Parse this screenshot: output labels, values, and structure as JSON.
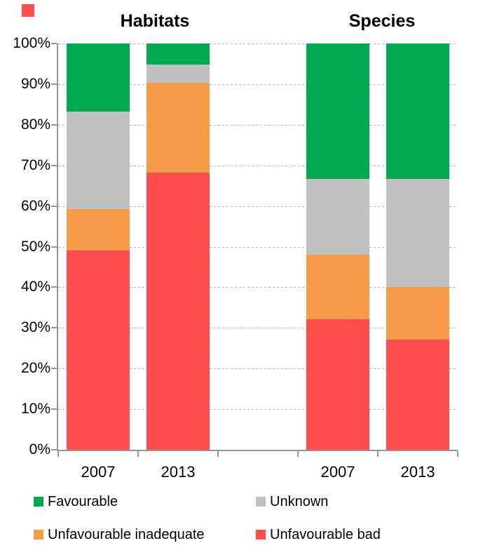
{
  "page": {
    "background": "#FFFFFF"
  },
  "decoration": {
    "corner_square_color": "#FF4D4D"
  },
  "chart_data": {
    "type": "bar",
    "stacked": true,
    "values_are": "percent",
    "group_titles": [
      "Habitats",
      "Species"
    ],
    "categories": [
      "2007",
      "2013",
      "2007",
      "2013"
    ],
    "category_groups": [
      "Habitats",
      "Habitats",
      "Species",
      "Species"
    ],
    "series": [
      {
        "name": "Unfavourable bad",
        "color": "#FF4D4D",
        "values": [
          49.1,
          68.3,
          32.2,
          27.2
        ]
      },
      {
        "name": "Unfavourable inadequate",
        "color": "#F59B49",
        "values": [
          10.2,
          22.0,
          15.9,
          12.8
        ]
      },
      {
        "name": "Unknown",
        "color": "#C1C1C1",
        "values": [
          24.0,
          4.5,
          18.5,
          26.6
        ]
      },
      {
        "name": "Favourable",
        "color": "#00A94F",
        "values": [
          16.7,
          5.2,
          33.4,
          33.4
        ]
      }
    ],
    "ylim": [
      0,
      100
    ],
    "ytick_labels": [
      "0%",
      "10%",
      "20%",
      "30%",
      "40%",
      "50%",
      "60%",
      "70%",
      "80%",
      "90%",
      "100%"
    ],
    "grid": {
      "horizontal": true,
      "style": "dashed",
      "color": "#B5B5B5"
    },
    "axis_color": "#969696",
    "legend_position": "bottom"
  },
  "legend": {
    "items": [
      {
        "label": "Favourable",
        "color": "#00A94F"
      },
      {
        "label": "Unknown",
        "color": "#C1C1C1"
      },
      {
        "label": "Unfavourable inadequate",
        "color": "#F59B49"
      },
      {
        "label": "Unfavourable bad",
        "color": "#FF4D4D"
      }
    ]
  }
}
